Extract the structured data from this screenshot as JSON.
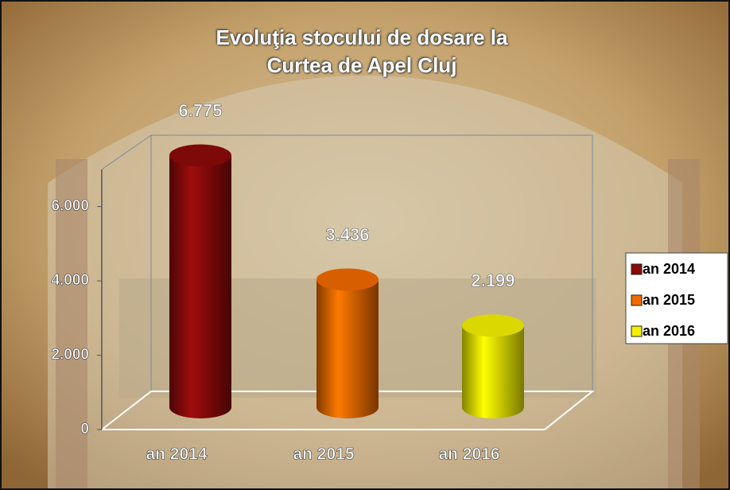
{
  "chart_data": {
    "type": "bar",
    "title": "Evoluţia stocului de dosare la Curtea de Apel Cluj",
    "categories": [
      "an 2014",
      "an 2015",
      "an 2016"
    ],
    "values": [
      6775,
      3436,
      2199
    ],
    "value_labels": [
      "6.775",
      "3.436",
      "2.199"
    ],
    "colors": [
      "#8b0a0a",
      "#f06a00",
      "#f2f000"
    ],
    "ylim": [
      0,
      7000
    ],
    "yticks": [
      0,
      {
        "value": 2000,
        "label": "2.000"
      },
      {
        "value": 4000,
        "label": "4.000"
      },
      {
        "value": 6000,
        "label": "6.000"
      }
    ],
    "grid": false,
    "legend": "right"
  }
}
